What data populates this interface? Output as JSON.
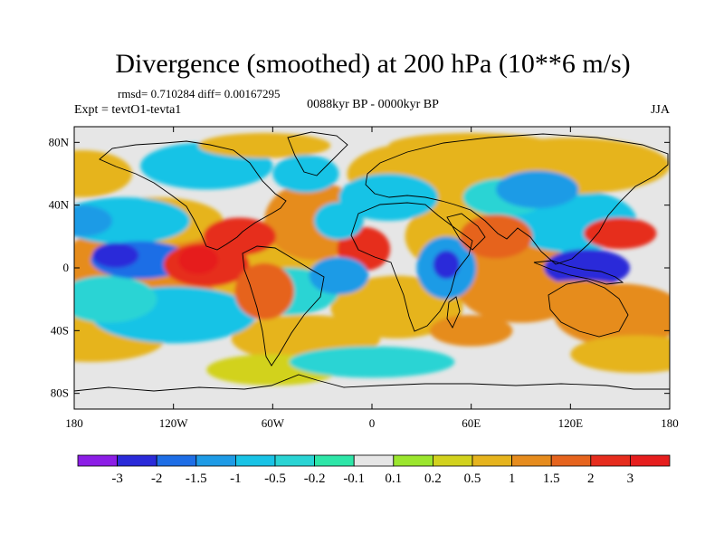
{
  "map": {
    "title": "Divergence (smoothed) at 200 hPa (10**6 m/s)",
    "stats": "rmsd= 0.710284 diff= 0.00167295",
    "experiment": "Expt = tevtO1-tevta1",
    "period": "0088kyr BP - 0000kyr BP",
    "season": "JJA",
    "lat_labels": [
      "80N",
      "40N",
      "0",
      "40S",
      "80S"
    ],
    "lon_labels": [
      "180",
      "120W",
      "60W",
      "0",
      "60E",
      "120E",
      "180"
    ],
    "extent": {
      "lon": [
        -180,
        180
      ],
      "lat": [
        -90,
        90
      ]
    }
  },
  "colorbar": {
    "labels": [
      "-3",
      "-2",
      "-1.5",
      "-1",
      "-0.5",
      "-0.2",
      "-0.1",
      "0.1",
      "0.2",
      "0.5",
      "1",
      "1.5",
      "2",
      "3"
    ],
    "colors": [
      "#8c1ee6",
      "#2b2bd9",
      "#1e6ee6",
      "#1e9be6",
      "#19c3e6",
      "#2ad4d4",
      "#2ee6a8",
      "#e6e6e6",
      "#9be62e",
      "#d2d21e",
      "#e6b41e",
      "#e68c1e",
      "#e6641e",
      "#e62d1e",
      "#e61e1e"
    ]
  },
  "chart_data": {
    "type": "heatmap",
    "title": "Divergence (smoothed) at 200 hPa (10**6 m/s)",
    "variable": "200 hPa divergence difference",
    "units": "10**6 m/s",
    "x_range": [
      -180,
      180
    ],
    "y_range": [
      -90,
      90
    ],
    "levels": [
      -3,
      -2,
      -1.5,
      -1,
      -0.5,
      -0.2,
      -0.1,
      0.1,
      0.2,
      0.5,
      1,
      1.5,
      2,
      3
    ],
    "notable_features": [
      {
        "name": "East Pacific convergence band",
        "lon": -150,
        "lat": 8,
        "value": -2.5
      },
      {
        "name": "East Pacific divergence",
        "lon": -100,
        "lat": 0,
        "value": 2.5
      },
      {
        "name": "Indonesian convergence",
        "lon": 130,
        "lat": 0,
        "value": -3
      },
      {
        "name": "West Pacific divergence",
        "lon": 150,
        "lat": 20,
        "value": 2.5
      },
      {
        "name": "West Africa divergence",
        "lon": -5,
        "lat": 15,
        "value": 2
      },
      {
        "name": "Horn of Africa convergence",
        "lon": 45,
        "lat": 0,
        "value": -2.5
      }
    ]
  }
}
